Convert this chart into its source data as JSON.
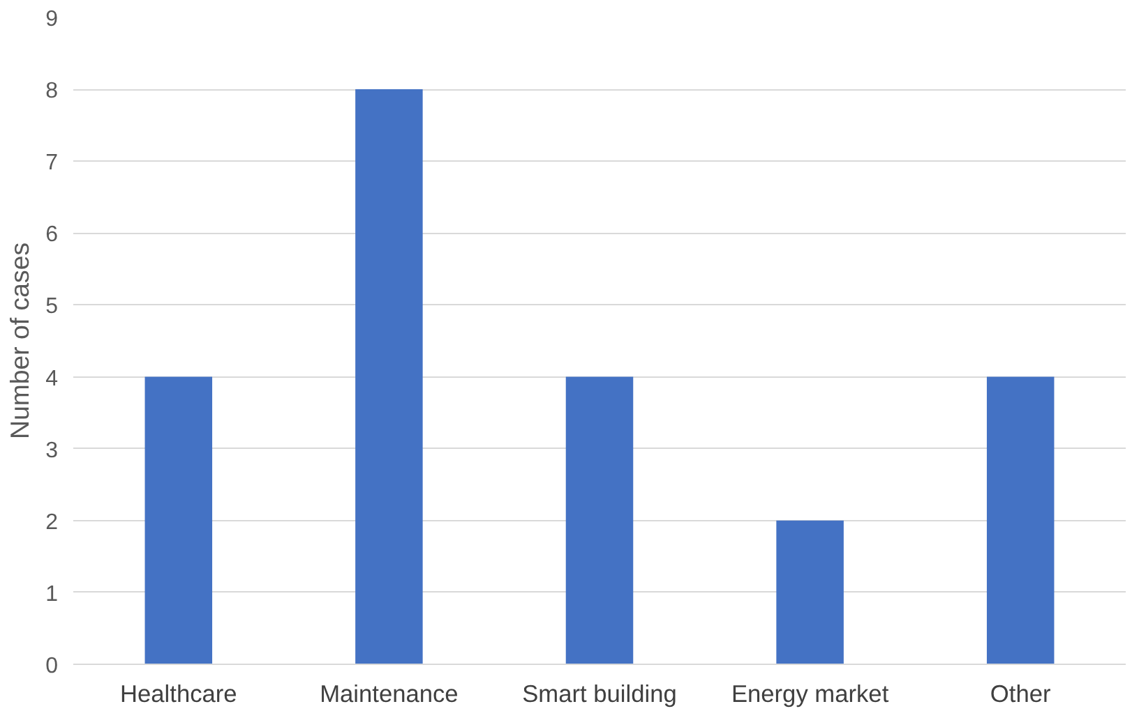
{
  "chart_data": {
    "type": "bar",
    "ylabel": "Number of cases",
    "categories": [
      "Healthcare",
      "Maintenance",
      "Smart building",
      "Energy market",
      "Other"
    ],
    "values": [
      4,
      8,
      4,
      2,
      4
    ],
    "color": "#4472c4",
    "ylim": [
      0,
      9
    ],
    "yticks": [
      0,
      1,
      2,
      3,
      4,
      5,
      6,
      7,
      8,
      9
    ],
    "grid": "y"
  }
}
